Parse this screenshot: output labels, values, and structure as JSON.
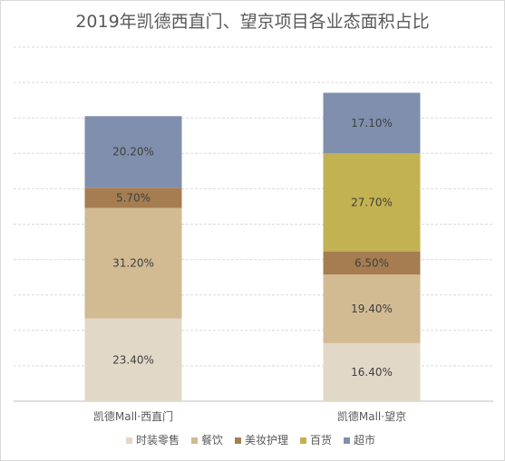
{
  "chart_data": {
    "type": "bar",
    "stacked": true,
    "percent": true,
    "title": "2019年凯德西直门、望京项目各业态面积占比",
    "categories": [
      "凯德Mall·西直门",
      "凯德Mall·望京"
    ],
    "ylim": [
      0,
      100
    ],
    "grid": true,
    "legend_position": "bottom",
    "series": [
      {
        "name": "时装零售",
        "color": "#e2d8c8",
        "values": [
          23.4,
          16.4
        ],
        "labels": [
          "23.40%",
          "16.40%"
        ]
      },
      {
        "name": "餐饮",
        "color": "#d2ba92",
        "values": [
          31.2,
          19.4
        ],
        "labels": [
          "31.20%",
          "19.40%"
        ]
      },
      {
        "name": "美妆护理",
        "color": "#a57d51",
        "values": [
          5.7,
          6.5
        ],
        "labels": [
          "5.70%",
          "6.50%"
        ]
      },
      {
        "name": "百货",
        "color": "#c3b251",
        "values": [
          0,
          27.7
        ],
        "labels": [
          "",
          "27.70%"
        ]
      },
      {
        "name": "超市",
        "color": "#7f8fad",
        "values": [
          20.2,
          17.1
        ],
        "labels": [
          "20.20%",
          "17.10%"
        ]
      }
    ]
  }
}
